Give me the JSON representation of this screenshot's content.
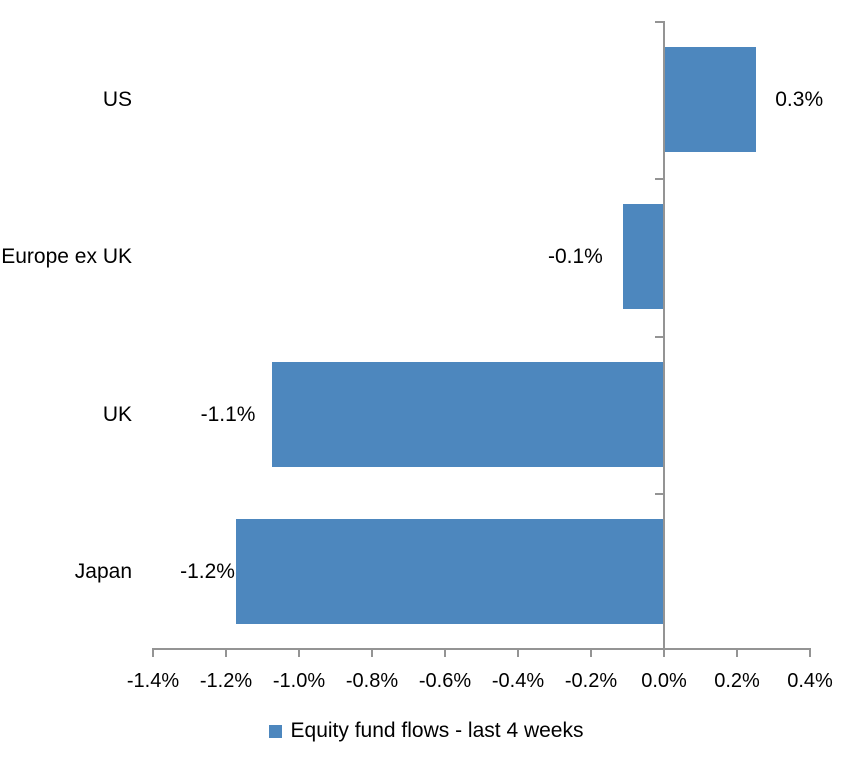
{
  "chart_data": {
    "type": "bar",
    "orientation": "horizontal",
    "title": "",
    "categories": [
      "US",
      "Europe ex UK",
      "UK",
      "Japan"
    ],
    "values": [
      0.3,
      -0.1,
      -1.1,
      -1.2
    ],
    "value_labels": [
      "0.3%",
      "-0.1%",
      "-1.1%",
      "-1.2%"
    ],
    "bar_lengths_pct": [
      0.25,
      -0.11,
      -1.07,
      -1.17
    ],
    "unit": "%",
    "xlabel": "",
    "ylabel": "",
    "xlim": [
      -1.4,
      0.4
    ],
    "x_ticks": [
      -1.4,
      -1.2,
      -1.0,
      -0.8,
      -0.6,
      -0.4,
      -0.2,
      0.0,
      0.2,
      0.4
    ],
    "x_tick_labels": [
      "-1.4%",
      "-1.2%",
      "-1.0%",
      "-0.8%",
      "-0.6%",
      "-0.4%",
      "-0.2%",
      "0.0%",
      "0.2%",
      "0.4%"
    ],
    "grid": false,
    "legend": {
      "position": "bottom",
      "entries": [
        "Equity fund flows - last 4 weeks"
      ]
    },
    "colors": {
      "bar": "#4D87BE",
      "axis": "#949494",
      "text": "#000000"
    }
  }
}
